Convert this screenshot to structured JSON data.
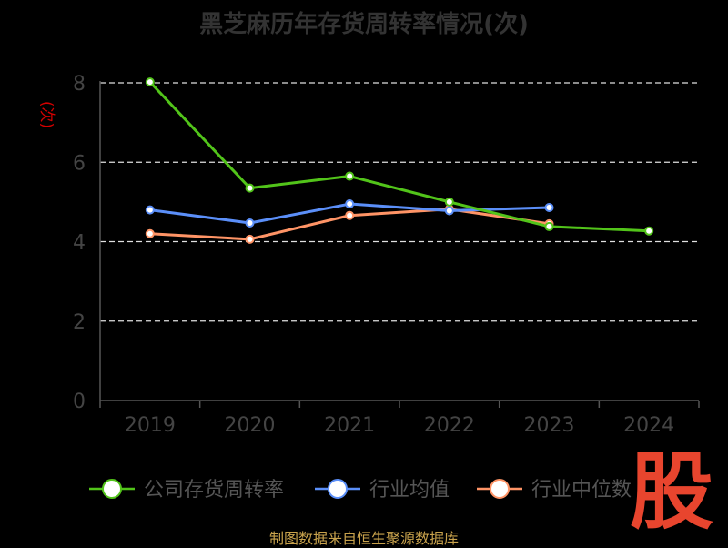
{
  "chart_data": {
    "type": "line",
    "title": "黑芝麻历年存货周转率情况(次)",
    "ylabel": "(次)",
    "xlabel": "",
    "categories": [
      "2019",
      "2020",
      "2021",
      "2022",
      "2023",
      "2024"
    ],
    "ylim": [
      0,
      8
    ],
    "yticks": [
      0,
      2,
      4,
      6,
      8
    ],
    "grid": true,
    "legend_position": "bottom",
    "series": [
      {
        "name": "公司存货周转率",
        "color": "#52c41a",
        "values": [
          8.02,
          5.35,
          5.65,
          5.0,
          4.38,
          4.27
        ]
      },
      {
        "name": "行业均值",
        "color": "#5b8ff9",
        "values": [
          4.8,
          4.47,
          4.95,
          4.78,
          4.86,
          null
        ]
      },
      {
        "name": "行业中位数",
        "color": "#ff9466",
        "values": [
          4.2,
          4.06,
          4.66,
          4.82,
          4.45,
          null
        ]
      }
    ]
  },
  "source": "制图数据来自恒生聚源数据库",
  "watermark_text": "股"
}
